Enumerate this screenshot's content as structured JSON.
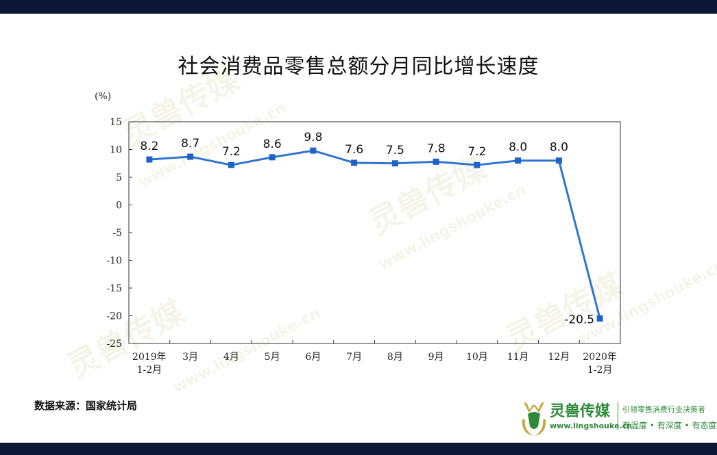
{
  "page": {
    "title": "社会消费品零售总额分月同比增长速度"
  },
  "chart_data": {
    "type": "line",
    "title": "社会消费品零售总额分月同比增长速度",
    "ylabel": "(%)",
    "xlabel": "",
    "categories": [
      "2019年 1-2月",
      "3月",
      "4月",
      "5月",
      "6月",
      "7月",
      "8月",
      "9月",
      "10月",
      "11月",
      "12月",
      "2020年 1-2月"
    ],
    "category_lines": [
      [
        "2019年",
        "1-2月"
      ],
      [
        "3月"
      ],
      [
        "4月"
      ],
      [
        "5月"
      ],
      [
        "6月"
      ],
      [
        "7月"
      ],
      [
        "8月"
      ],
      [
        "9月"
      ],
      [
        "10月"
      ],
      [
        "11月"
      ],
      [
        "12月"
      ],
      [
        "2020年",
        "1-2月"
      ]
    ],
    "values": [
      8.2,
      8.7,
      7.2,
      8.6,
      9.8,
      7.6,
      7.5,
      7.8,
      7.2,
      8.0,
      8.0,
      -20.5
    ],
    "data_labels": [
      "8.2",
      "8.7",
      "7.2",
      "8.6",
      "9.8",
      "7.6",
      "7.5",
      "7.8",
      "7.2",
      "8.0",
      "8.0",
      "-20.5"
    ],
    "yticks": [
      15,
      10,
      5,
      0,
      -5,
      -10,
      -15,
      -20,
      -25
    ],
    "ytick_labels": [
      "15",
      "10",
      "5",
      "0",
      "-5",
      "-10",
      "-15",
      "-20",
      "-25"
    ],
    "ylim": [
      -25,
      15
    ],
    "grid": false,
    "line_color": "#2f74d0",
    "marker_color": "#1f63c4"
  },
  "source": {
    "text": "数据来源：国家统计局"
  },
  "brand": {
    "name": "灵兽传媒",
    "url": "www.lingshouke.cn",
    "slogan_line1": "引领零售消费行业决策者",
    "slogan_line2": "有温度 • 有深度 • 有态度",
    "color": "#2e8a3a"
  },
  "watermark": {
    "name": "灵兽传媒",
    "url": "www.lingshouke.cn"
  }
}
